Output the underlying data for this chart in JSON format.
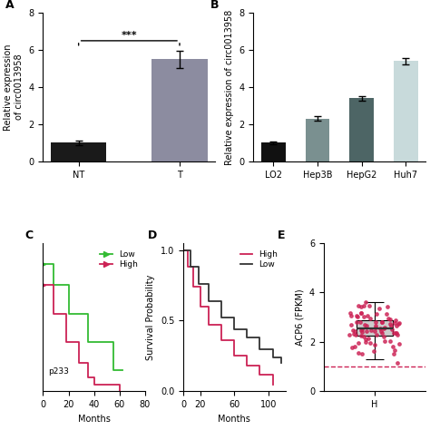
{
  "panel_A": {
    "categories": [
      "NT",
      "T"
    ],
    "values": [
      1.0,
      5.5
    ],
    "errors": [
      0.12,
      0.45
    ],
    "colors": [
      "#1a1a1a",
      "#8c8ca0"
    ],
    "ylabel": "Relative expression\nof circ0013958",
    "ylim": [
      0,
      8
    ],
    "yticks": [
      0,
      2,
      4,
      6,
      8
    ],
    "significance": "***",
    "label": "A",
    "sig_y": 6.5
  },
  "panel_B": {
    "categories": [
      "LO2",
      "Hep3B",
      "HepG2",
      "Huh7"
    ],
    "values": [
      1.0,
      2.3,
      3.4,
      5.4
    ],
    "errors": [
      0.08,
      0.13,
      0.13,
      0.18
    ],
    "colors": [
      "#111111",
      "#7a9090",
      "#4d6565",
      "#c8dadb"
    ],
    "ylabel": "Relative expression of circ0013958",
    "ylim": [
      0,
      8
    ],
    "yticks": [
      0,
      2,
      4,
      6,
      8
    ],
    "label": "B"
  },
  "panel_C": {
    "label": "C",
    "xlabel": "Months",
    "xlim": [
      0,
      80
    ],
    "ylim": [
      0.0,
      1.05
    ],
    "yticks": [],
    "xticks": [
      0,
      20,
      40,
      60,
      80
    ],
    "low_color": "#33bb33",
    "high_color": "#cc2255",
    "low_x": [
      0,
      8,
      8,
      20,
      20,
      35,
      35,
      55,
      55,
      62
    ],
    "low_y": [
      0.9,
      0.9,
      0.75,
      0.75,
      0.55,
      0.55,
      0.35,
      0.35,
      0.15,
      0.15
    ],
    "high_x": [
      0,
      8,
      8,
      18,
      18,
      28,
      28,
      35,
      35,
      40,
      40,
      60,
      60
    ],
    "high_y": [
      0.75,
      0.75,
      0.55,
      0.55,
      0.35,
      0.35,
      0.2,
      0.2,
      0.1,
      0.1,
      0.05,
      0.05,
      0.0
    ],
    "annotation": "p233",
    "legend_low": "Low",
    "legend_high": "High"
  },
  "panel_D": {
    "label": "D",
    "xlabel": "Months",
    "ylabel": "Survival Probability",
    "xlim": [
      0,
      120
    ],
    "ylim": [
      0.0,
      1.05
    ],
    "yticks": [
      0.0,
      0.5,
      1.0
    ],
    "xticks": [
      0,
      20,
      60,
      100
    ],
    "high_color": "#cc2255",
    "low_color": "#333333",
    "high_x": [
      0,
      5,
      5,
      12,
      12,
      20,
      20,
      30,
      30,
      45,
      45,
      60,
      60,
      75,
      75,
      90,
      90,
      105,
      105
    ],
    "high_y": [
      1.0,
      1.0,
      0.88,
      0.88,
      0.74,
      0.74,
      0.6,
      0.6,
      0.47,
      0.47,
      0.36,
      0.36,
      0.25,
      0.25,
      0.18,
      0.18,
      0.12,
      0.12,
      0.05
    ],
    "low_x": [
      0,
      8,
      8,
      18,
      18,
      30,
      30,
      45,
      45,
      60,
      60,
      75,
      75,
      90,
      90,
      105,
      105,
      115,
      115
    ],
    "low_y": [
      1.0,
      1.0,
      0.88,
      0.88,
      0.76,
      0.76,
      0.64,
      0.64,
      0.52,
      0.52,
      0.44,
      0.44,
      0.38,
      0.38,
      0.3,
      0.3,
      0.24,
      0.24,
      0.2
    ],
    "legend_high": "High",
    "legend_low": "Low"
  },
  "panel_E": {
    "label": "E",
    "ylabel": "ACP6 (FPKM)",
    "ylim": [
      0,
      6
    ],
    "yticks": [
      0,
      2,
      4,
      6
    ],
    "xlabel": "H",
    "dashed_line_y": 1.0,
    "dashed_color": "#cc2255",
    "dot_color": "#cc2255",
    "box_color": "#cccccc",
    "mean_line_color": "#333333"
  },
  "bg_color": "#ffffff",
  "font_size": 7,
  "label_font_size": 9
}
